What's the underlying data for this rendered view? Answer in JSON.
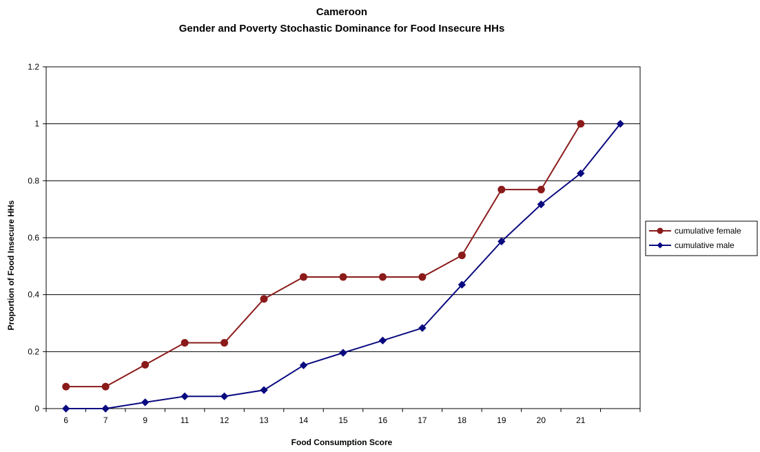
{
  "chart_data": {
    "type": "line",
    "title_line1": "Cameroon",
    "title_line2": "Gender and Poverty Stochastic Dominance for Food Insecure HHs",
    "xlabel": "Food Consumption Score",
    "ylabel": "Proportion of Food Insecure HHs",
    "categories": [
      "6",
      "7",
      "9",
      "11",
      "12",
      "13",
      "14",
      "15",
      "16",
      "17",
      "18",
      "19",
      "20",
      "21",
      ""
    ],
    "ylim": [
      0,
      1.2
    ],
    "yticks": [
      "0",
      "0.2",
      "0.4",
      "0.6",
      "0.8",
      "1",
      "1.2"
    ],
    "ytick_values": [
      0,
      0.2,
      0.4,
      0.6,
      0.8,
      1.0,
      1.2
    ],
    "grid": true,
    "legend_position": "right",
    "series": [
      {
        "name": "cumulative female",
        "color": "#8B1A1A",
        "marker": "circle",
        "values": [
          0.077,
          0.077,
          0.154,
          0.231,
          0.231,
          0.385,
          0.462,
          0.462,
          0.462,
          0.462,
          0.538,
          0.769,
          0.769,
          1.0,
          null
        ]
      },
      {
        "name": "cumulative male",
        "color": "#0A0A80",
        "marker": "diamond",
        "values": [
          0.0,
          0.0,
          0.022,
          0.043,
          0.043,
          0.065,
          0.152,
          0.196,
          0.239,
          0.283,
          0.435,
          0.587,
          0.717,
          0.826,
          1.0
        ]
      }
    ]
  }
}
